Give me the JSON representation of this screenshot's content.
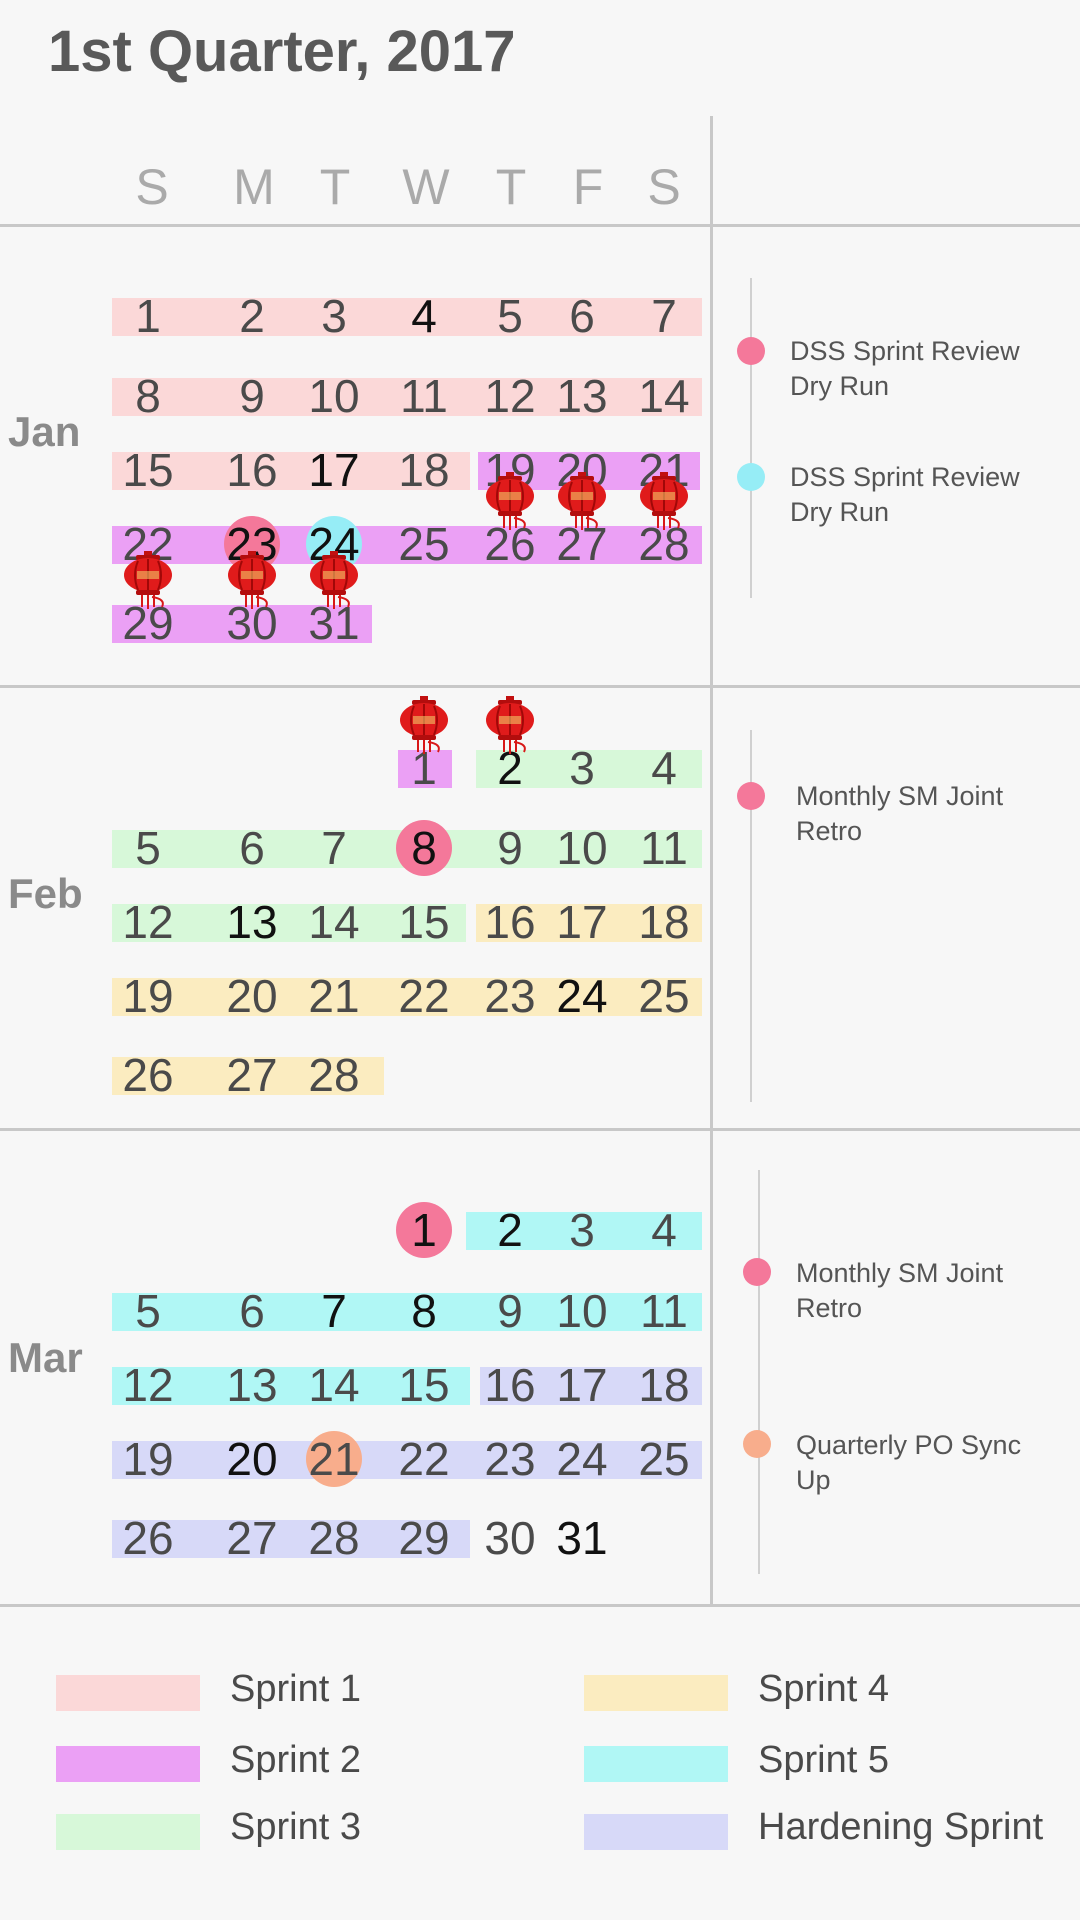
{
  "title": "1st Quarter, 2017",
  "weekdays": [
    "S",
    "M",
    "T",
    "W",
    "T",
    "F",
    "S"
  ],
  "colors": {
    "sprint1": "#fbd8d8",
    "sprint2": "#eba0f5",
    "sprint3": "#d7f8d9",
    "sprint4": "#fbecc0",
    "sprint5": "#b0f7f5",
    "hardening": "#d7d9f8",
    "event_pink": "#f4789a",
    "event_cyan": "#96edf6",
    "event_orange": "#f8ad8c"
  },
  "months": [
    {
      "name": "Jan",
      "weeks": [
        [
          "1",
          "2",
          "3",
          "4",
          "5",
          "6",
          "7"
        ],
        [
          "8",
          "9",
          "10",
          "11",
          "12",
          "13",
          "14"
        ],
        [
          "15",
          "16",
          "17",
          "18",
          "19",
          "20",
          "21"
        ],
        [
          "22",
          "23",
          "24",
          "25",
          "26",
          "27",
          "28"
        ],
        [
          "29",
          "30",
          "31",
          "",
          "",
          "",
          ""
        ]
      ],
      "events": [
        {
          "label": "DSS Sprint Review Dry Run",
          "color": "event_pink"
        },
        {
          "label": "DSS Sprint Review Dry Run",
          "color": "event_cyan"
        }
      ]
    },
    {
      "name": "Feb",
      "weeks": [
        [
          "",
          "",
          "",
          "1",
          "2",
          "3",
          "4"
        ],
        [
          "5",
          "6",
          "7",
          "8",
          "9",
          "10",
          "11"
        ],
        [
          "12",
          "13",
          "14",
          "15",
          "16",
          "17",
          "18"
        ],
        [
          "19",
          "20",
          "21",
          "22",
          "23",
          "24",
          "25"
        ],
        [
          "26",
          "27",
          "28",
          "",
          "",
          "",
          ""
        ]
      ],
      "events": [
        {
          "label": "Monthly SM Joint Retro",
          "color": "event_pink"
        }
      ]
    },
    {
      "name": "Mar",
      "weeks": [
        [
          "",
          "",
          "",
          "1",
          "2",
          "3",
          "4"
        ],
        [
          "5",
          "6",
          "7",
          "8",
          "9",
          "10",
          "11"
        ],
        [
          "12",
          "13",
          "14",
          "15",
          "16",
          "17",
          "18"
        ],
        [
          "19",
          "20",
          "21",
          "22",
          "23",
          "24",
          "25"
        ],
        [
          "26",
          "27",
          "28",
          "29",
          "30",
          "31",
          ""
        ]
      ],
      "events": [
        {
          "label": "Monthly SM Joint Retro",
          "color": "event_pink"
        },
        {
          "label": "Quarterly PO Sync Up",
          "color": "event_orange"
        }
      ]
    }
  ],
  "highlighted_days": [
    {
      "month": "Jan",
      "day": "23",
      "color": "event_pink"
    },
    {
      "month": "Jan",
      "day": "24",
      "color": "event_cyan"
    },
    {
      "month": "Feb",
      "day": "8",
      "color": "event_pink"
    },
    {
      "month": "Mar",
      "day": "1",
      "color": "event_pink"
    },
    {
      "month": "Mar",
      "day": "21",
      "color": "event_orange"
    }
  ],
  "holiday_days": [
    {
      "month": "Jan",
      "days": [
        "26",
        "27",
        "28",
        "29",
        "30",
        "31"
      ]
    },
    {
      "month": "Feb",
      "days": [
        "1",
        "2"
      ]
    }
  ],
  "legend": [
    {
      "label": "Sprint 1",
      "color": "sprint1"
    },
    {
      "label": "Sprint 4",
      "color": "sprint4"
    },
    {
      "label": "Sprint 2",
      "color": "sprint2"
    },
    {
      "label": "Sprint 5",
      "color": "sprint5"
    },
    {
      "label": "Sprint 3",
      "color": "sprint3"
    },
    {
      "label": "Hardening Sprint",
      "color": "hardening"
    }
  ]
}
